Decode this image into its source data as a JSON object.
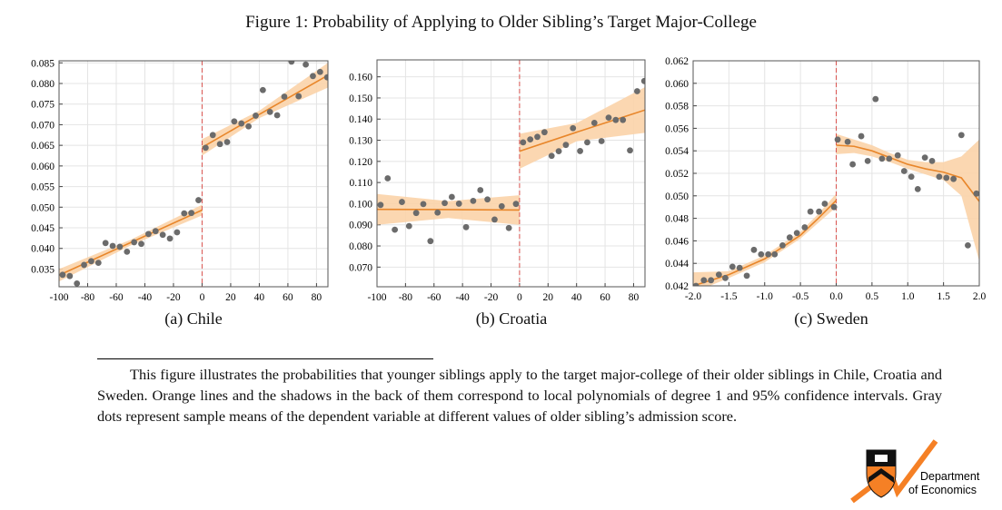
{
  "figure_title": "Figure 1: Probability of Applying to Older Sibling’s Target Major-College",
  "note": "This figure illustrates the probabilities that younger siblings apply to the target major-college of their older siblings in Chile, Croatia and Sweden. Orange lines and the shadows in the back of them correspond to local polynomials of degree 1 and 95% confidence intervals. Gray dots represent sample means of the dependent variable at different values of older sibling’s admission score.",
  "logo": {
    "text_line1": "Department",
    "text_line2": "of Economics"
  },
  "colors": {
    "dots": "#6b6b6b",
    "fit_line": "#e8862a",
    "ci_band": "#fbd3a8",
    "cutoff_line": "#d9534f",
    "grid": "#e4e4e4",
    "logo_orange": "#f58025"
  },
  "chart_data": [
    {
      "type": "scatter",
      "caption": "(a) Chile",
      "xlim": [
        -100,
        88
      ],
      "ylim": [
        0.0307,
        0.0855
      ],
      "xticks": [
        -100,
        -80,
        -60,
        -40,
        -20,
        0,
        20,
        40,
        60,
        80
      ],
      "yticks": [
        0.035,
        0.04,
        0.045,
        0.05,
        0.055,
        0.06,
        0.065,
        0.07,
        0.075,
        0.08,
        0.085
      ],
      "ytick_format": 3,
      "xtick_format": 0,
      "grid": true,
      "cutoff": 0,
      "points": {
        "x": [
          -97.5,
          -92.5,
          -87.5,
          -82.5,
          -77.5,
          -72.5,
          -67.5,
          -62.5,
          -57.5,
          -52.5,
          -47.5,
          -42.5,
          -37.5,
          -32.5,
          -27.5,
          -22.5,
          -17.5,
          -12.5,
          -7.5,
          -2.5,
          2.5,
          7.5,
          12.5,
          17.5,
          22.5,
          27.5,
          32.5,
          37.5,
          42.5,
          47.5,
          52.5,
          57.5,
          62.5,
          67.5,
          72.5,
          77.5,
          82.5,
          87.5
        ],
        "y": [
          0.0336,
          0.0333,
          0.0315,
          0.036,
          0.0369,
          0.0365,
          0.0413,
          0.0406,
          0.0404,
          0.0392,
          0.0415,
          0.0411,
          0.0435,
          0.0442,
          0.0433,
          0.0424,
          0.0439,
          0.0485,
          0.0486,
          0.0517,
          0.0644,
          0.0675,
          0.0653,
          0.0658,
          0.0708,
          0.0703,
          0.0696,
          0.0722,
          0.0784,
          0.0731,
          0.0723,
          0.0768,
          0.0853,
          0.0769,
          0.0846,
          0.0818,
          0.0828,
          0.0815
        ]
      },
      "fits": [
        {
          "x": [
            -100,
            -50,
            0
          ],
          "y": [
            0.0335,
            0.0414,
            0.0493
          ],
          "lower": [
            0.032,
            0.0407,
            0.048
          ],
          "upper": [
            0.035,
            0.0421,
            0.0506
          ]
        },
        {
          "x": [
            0,
            40,
            88
          ],
          "y": [
            0.0645,
            0.0725,
            0.082
          ],
          "lower": [
            0.0625,
            0.0716,
            0.079
          ],
          "upper": [
            0.0665,
            0.0734,
            0.085
          ]
        }
      ]
    },
    {
      "type": "scatter",
      "caption": "(b) Croatia",
      "xlim": [
        -100,
        88
      ],
      "ylim": [
        0.0607,
        0.168
      ],
      "xticks": [
        -100,
        -80,
        -60,
        -40,
        -20,
        0,
        20,
        40,
        60,
        80
      ],
      "yticks": [
        0.07,
        0.08,
        0.09,
        0.1,
        0.11,
        0.12,
        0.13,
        0.14,
        0.15,
        0.16
      ],
      "ytick_format": 3,
      "xtick_format": 0,
      "grid": true,
      "cutoff": 0,
      "points": {
        "x": [
          -97.5,
          -92.5,
          -87.5,
          -82.5,
          -77.5,
          -72.5,
          -67.5,
          -62.5,
          -57.5,
          -52.5,
          -47.5,
          -42.5,
          -37.5,
          -32.5,
          -27.5,
          -22.5,
          -17.5,
          -12.5,
          -7.5,
          -2.5,
          2.5,
          7.5,
          12.5,
          17.5,
          22.5,
          27.5,
          32.5,
          37.5,
          42.5,
          47.5,
          52.5,
          57.5,
          62.5,
          67.5,
          72.5,
          77.5,
          82.5,
          87.5
        ],
        "y": [
          0.0994,
          0.112,
          0.0877,
          0.1008,
          0.0894,
          0.0956,
          0.0998,
          0.0823,
          0.0958,
          0.1003,
          0.1032,
          0.1,
          0.0889,
          0.1013,
          0.1064,
          0.102,
          0.0925,
          0.0988,
          0.0885,
          0.0999,
          0.129,
          0.1304,
          0.1316,
          0.1338,
          0.1226,
          0.1248,
          0.1278,
          0.1357,
          0.1249,
          0.129,
          0.1382,
          0.1296,
          0.1407,
          0.1396,
          0.1396,
          0.1252,
          0.1532,
          0.158
        ]
      },
      "fits": [
        {
          "x": [
            -100,
            -50,
            0
          ],
          "y": [
            0.0973,
            0.0972,
            0.097
          ],
          "lower": [
            0.09,
            0.0932,
            0.09
          ],
          "upper": [
            0.1046,
            0.1012,
            0.104
          ]
        },
        {
          "x": [
            0,
            40,
            88
          ],
          "y": [
            0.1248,
            0.1338,
            0.1443
          ],
          "lower": [
            0.1165,
            0.1295,
            0.1335
          ],
          "upper": [
            0.1331,
            0.1381,
            0.1551
          ]
        }
      ]
    },
    {
      "type": "scatter",
      "caption": "(c) Sweden",
      "xlim": [
        -2.0,
        2.0
      ],
      "ylim": [
        0.042,
        0.062
      ],
      "xticks": [
        -2.0,
        -1.5,
        -1.0,
        -0.5,
        0.0,
        0.5,
        1.0,
        1.5,
        2.0
      ],
      "yticks": [
        0.042,
        0.044,
        0.046,
        0.048,
        0.05,
        0.052,
        0.054,
        0.056,
        0.058,
        0.06,
        0.062
      ],
      "ytick_format": 3,
      "xtick_format": 1,
      "grid": true,
      "cutoff": 0,
      "points": {
        "x": [
          -1.96,
          -1.85,
          -1.75,
          -1.64,
          -1.55,
          -1.45,
          -1.35,
          -1.25,
          -1.15,
          -1.05,
          -0.95,
          -0.86,
          -0.75,
          -0.65,
          -0.55,
          -0.44,
          -0.36,
          -0.24,
          -0.16,
          -0.03,
          0.02,
          0.16,
          0.23,
          0.35,
          0.44,
          0.55,
          0.64,
          0.74,
          0.86,
          0.95,
          1.05,
          1.14,
          1.24,
          1.34,
          1.44,
          1.54,
          1.64,
          1.75,
          1.84,
          1.96
        ],
        "y": [
          0.042,
          0.0425,
          0.0425,
          0.043,
          0.0427,
          0.0437,
          0.0436,
          0.0429,
          0.0452,
          0.0448,
          0.0448,
          0.0448,
          0.0456,
          0.0463,
          0.0467,
          0.0472,
          0.0486,
          0.0486,
          0.0493,
          0.049,
          0.055,
          0.0548,
          0.0528,
          0.0553,
          0.0531,
          0.0586,
          0.0533,
          0.0533,
          0.0536,
          0.0522,
          0.0517,
          0.0506,
          0.0534,
          0.0531,
          0.0517,
          0.0516,
          0.0515,
          0.0554,
          0.0456,
          0.0502
        ]
      },
      "fits": [
        {
          "x": [
            -2.0,
            -1.5,
            -1.0,
            -0.5,
            -0.25,
            0.0
          ],
          "y": [
            0.042,
            0.043,
            0.0444,
            0.0465,
            0.048,
            0.0496
          ],
          "lower": [
            0.0414,
            0.0427,
            0.0441,
            0.0462,
            0.0476,
            0.049
          ],
          "upper": [
            0.0432,
            0.0433,
            0.0447,
            0.0468,
            0.0484,
            0.0502
          ]
        },
        {
          "x": [
            0.0,
            0.25,
            0.5,
            0.75,
            1.0,
            1.25,
            1.5,
            1.75,
            2.0
          ],
          "y": [
            0.0545,
            0.0544,
            0.054,
            0.0534,
            0.0528,
            0.0524,
            0.0521,
            0.0516,
            0.0495
          ],
          "lower": [
            0.0537,
            0.0538,
            0.0535,
            0.053,
            0.0524,
            0.0519,
            0.0514,
            0.05,
            0.0442
          ],
          "upper": [
            0.0555,
            0.055,
            0.0545,
            0.0538,
            0.0532,
            0.053,
            0.053,
            0.0535,
            0.055
          ]
        }
      ]
    }
  ]
}
